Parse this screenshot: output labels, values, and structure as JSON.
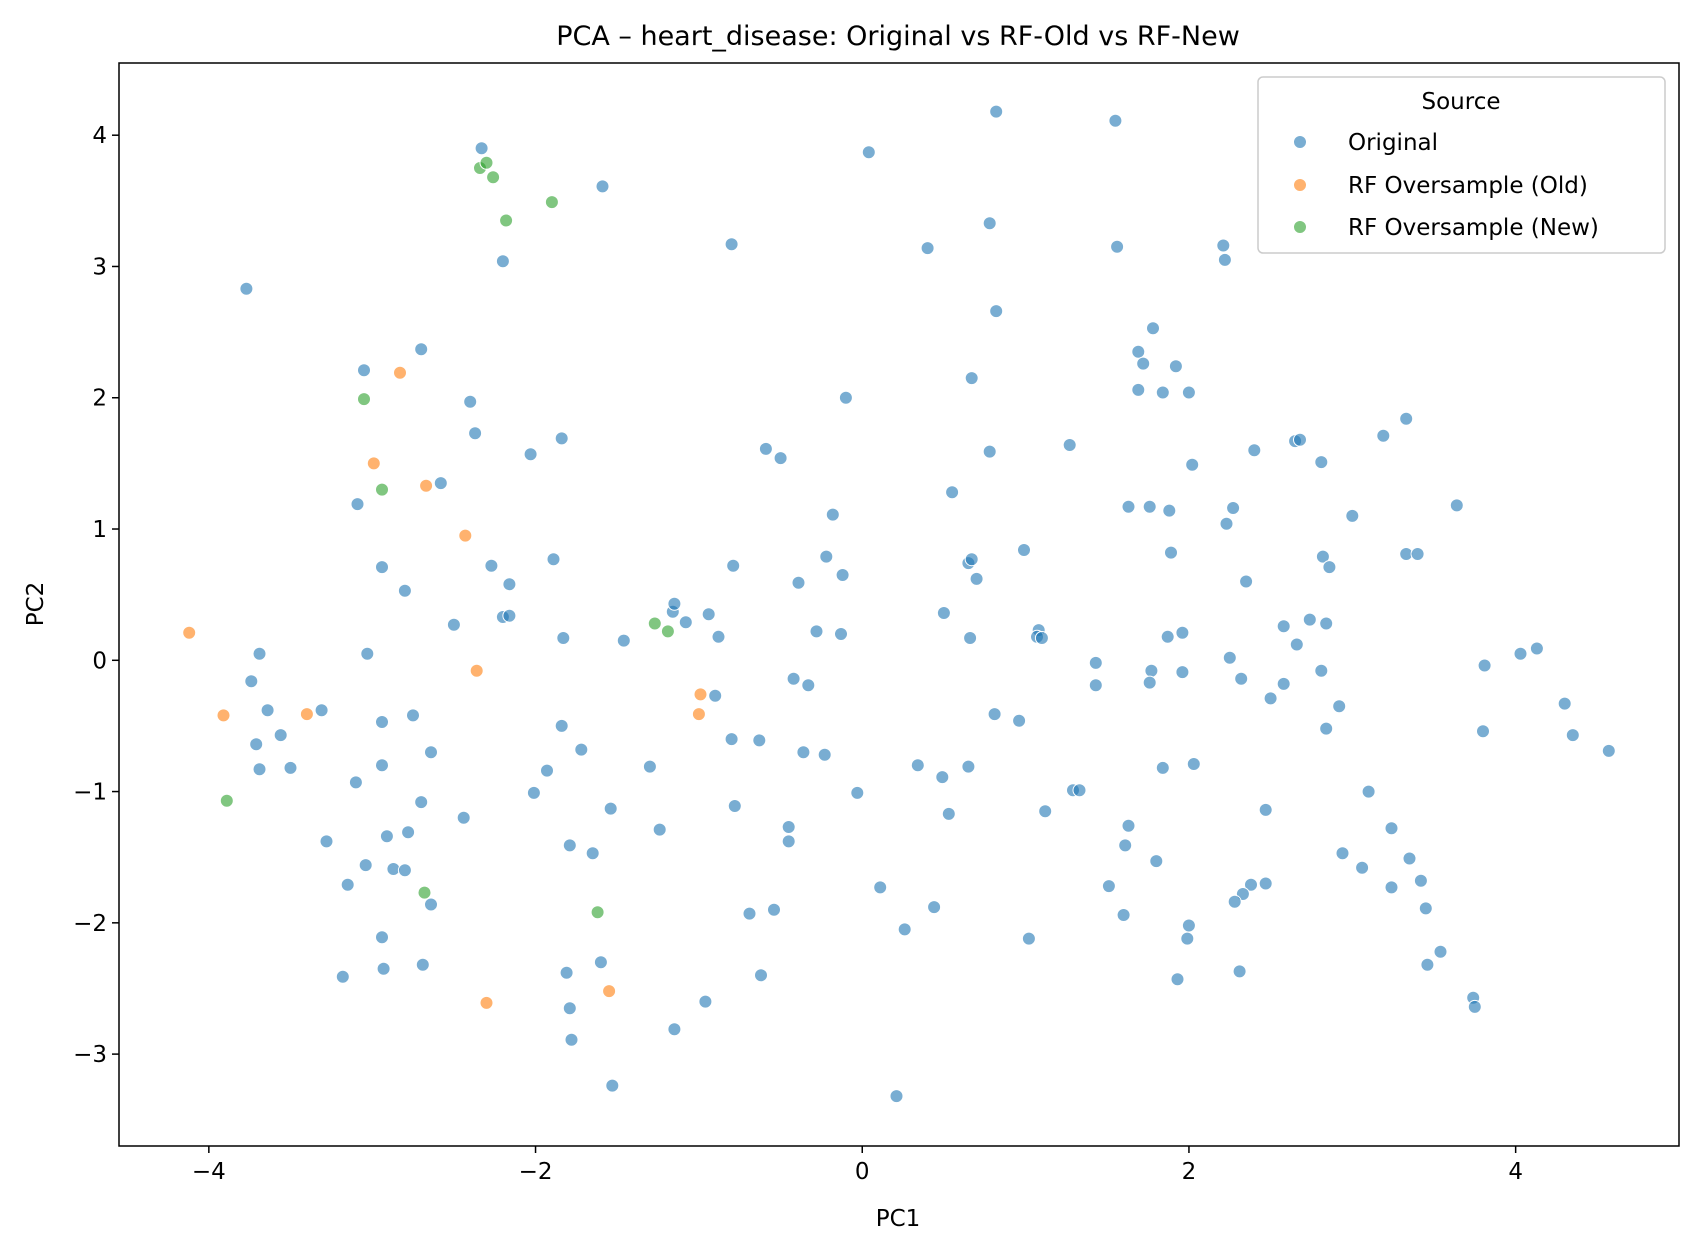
{
  "chart_data": {
    "type": "scatter",
    "title": "PCA – heart_disease: Original vs RF-Old vs RF-New",
    "xlabel": "PC1",
    "ylabel": "PC2",
    "xlim": [
      -4.55,
      5.0
    ],
    "ylim": [
      -3.7,
      4.55
    ],
    "x_ticks": [
      -4,
      -2,
      0,
      2,
      4
    ],
    "y_ticks": [
      -3,
      -2,
      -1,
      0,
      1,
      2,
      3,
      4
    ],
    "grid": false,
    "legend": {
      "title": "Source",
      "placement": "top-right",
      "entries": [
        "Original",
        "RF Oversample (Old)",
        "RF Oversample (New)"
      ]
    },
    "series": [
      {
        "name": "Original",
        "color": "#1f77b4",
        "points": [
          [
            -3.77,
            2.83
          ],
          [
            -2.33,
            3.9
          ],
          [
            -1.59,
            3.61
          ],
          [
            -2.2,
            3.04
          ],
          [
            -0.8,
            3.17
          ],
          [
            0.04,
            3.87
          ],
          [
            0.82,
            4.18
          ],
          [
            1.55,
            4.11
          ],
          [
            0.4,
            3.14
          ],
          [
            0.78,
            3.33
          ],
          [
            1.56,
            3.15
          ],
          [
            2.21,
            3.16
          ],
          [
            2.22,
            3.05
          ],
          [
            0.82,
            2.66
          ],
          [
            1.78,
            2.53
          ],
          [
            1.69,
            2.35
          ],
          [
            1.72,
            2.26
          ],
          [
            1.92,
            2.24
          ],
          [
            0.67,
            2.15
          ],
          [
            1.69,
            2.06
          ],
          [
            1.84,
            2.04
          ],
          [
            2.0,
            2.04
          ],
          [
            -0.1,
            2.0
          ],
          [
            -3.05,
            2.21
          ],
          [
            -2.7,
            2.37
          ],
          [
            -2.4,
            1.97
          ],
          [
            -2.37,
            1.73
          ],
          [
            -2.03,
            1.57
          ],
          [
            -1.84,
            1.69
          ],
          [
            -0.59,
            1.61
          ],
          [
            -0.5,
            1.54
          ],
          [
            0.78,
            1.59
          ],
          [
            1.27,
            1.64
          ],
          [
            2.02,
            1.49
          ],
          [
            2.4,
            1.6
          ],
          [
            2.65,
            1.67
          ],
          [
            2.68,
            1.68
          ],
          [
            2.81,
            1.51
          ],
          [
            3.19,
            1.71
          ],
          [
            3.33,
            1.84
          ],
          [
            -2.58,
            1.35
          ],
          [
            -3.09,
            1.19
          ],
          [
            -0.18,
            1.11
          ],
          [
            0.55,
            1.28
          ],
          [
            1.63,
            1.17
          ],
          [
            1.76,
            1.17
          ],
          [
            1.88,
            1.14
          ],
          [
            2.27,
            1.16
          ],
          [
            2.23,
            1.04
          ],
          [
            3.0,
            1.1
          ],
          [
            3.64,
            1.18
          ],
          [
            -2.94,
            0.71
          ],
          [
            -2.27,
            0.72
          ],
          [
            -1.89,
            0.77
          ],
          [
            -0.79,
            0.72
          ],
          [
            -0.22,
            0.79
          ],
          [
            -0.12,
            0.65
          ],
          [
            0.65,
            0.74
          ],
          [
            0.67,
            0.77
          ],
          [
            0.7,
            0.62
          ],
          [
            0.99,
            0.84
          ],
          [
            1.89,
            0.82
          ],
          [
            2.82,
            0.79
          ],
          [
            2.86,
            0.71
          ],
          [
            3.33,
            0.81
          ],
          [
            3.4,
            0.81
          ],
          [
            2.35,
            0.6
          ],
          [
            -2.16,
            0.58
          ],
          [
            -2.8,
            0.53
          ],
          [
            -0.39,
            0.59
          ],
          [
            -2.5,
            0.27
          ],
          [
            -2.2,
            0.33
          ],
          [
            -2.16,
            0.34
          ],
          [
            -1.16,
            0.37
          ],
          [
            -1.15,
            0.43
          ],
          [
            -1.08,
            0.29
          ],
          [
            -0.94,
            0.35
          ],
          [
            -0.88,
            0.18
          ],
          [
            -0.28,
            0.22
          ],
          [
            -0.13,
            0.2
          ],
          [
            0.5,
            0.36
          ],
          [
            0.66,
            0.17
          ],
          [
            1.08,
            0.23
          ],
          [
            1.07,
            0.18
          ],
          [
            1.1,
            0.17
          ],
          [
            1.87,
            0.18
          ],
          [
            1.96,
            0.21
          ],
          [
            2.58,
            0.26
          ],
          [
            2.66,
            0.12
          ],
          [
            2.74,
            0.31
          ],
          [
            2.84,
            0.28
          ],
          [
            -3.69,
            0.05
          ],
          [
            -3.03,
            0.05
          ],
          [
            -1.83,
            0.17
          ],
          [
            -1.46,
            0.15
          ],
          [
            1.43,
            -0.02
          ],
          [
            2.25,
            0.02
          ],
          [
            3.81,
            -0.04
          ],
          [
            4.03,
            0.05
          ],
          [
            4.13,
            0.09
          ],
          [
            -3.74,
            -0.16
          ],
          [
            -3.64,
            -0.38
          ],
          [
            -3.31,
            -0.38
          ],
          [
            -2.94,
            -0.47
          ],
          [
            -2.75,
            -0.42
          ],
          [
            -0.9,
            -0.27
          ],
          [
            -0.42,
            -0.14
          ],
          [
            -0.33,
            -0.19
          ],
          [
            0.81,
            -0.41
          ],
          [
            0.96,
            -0.46
          ],
          [
            1.43,
            -0.19
          ],
          [
            1.77,
            -0.08
          ],
          [
            1.76,
            -0.17
          ],
          [
            1.96,
            -0.09
          ],
          [
            2.32,
            -0.14
          ],
          [
            2.58,
            -0.18
          ],
          [
            2.5,
            -0.29
          ],
          [
            2.81,
            -0.08
          ],
          [
            2.92,
            -0.35
          ],
          [
            2.84,
            -0.52
          ],
          [
            3.8,
            -0.54
          ],
          [
            4.3,
            -0.33
          ],
          [
            4.35,
            -0.57
          ],
          [
            4.57,
            -0.69
          ],
          [
            -3.71,
            -0.64
          ],
          [
            -3.69,
            -0.83
          ],
          [
            -3.56,
            -0.57
          ],
          [
            -3.5,
            -0.82
          ],
          [
            -2.94,
            -0.8
          ],
          [
            -2.64,
            -0.7
          ],
          [
            -1.84,
            -0.5
          ],
          [
            -1.72,
            -0.68
          ],
          [
            -1.93,
            -0.84
          ],
          [
            -1.3,
            -0.81
          ],
          [
            -0.8,
            -0.6
          ],
          [
            -0.63,
            -0.61
          ],
          [
            -0.36,
            -0.7
          ],
          [
            -0.23,
            -0.72
          ],
          [
            0.34,
            -0.8
          ],
          [
            0.49,
            -0.89
          ],
          [
            0.65,
            -0.81
          ],
          [
            1.84,
            -0.82
          ],
          [
            2.03,
            -0.79
          ],
          [
            -3.1,
            -0.93
          ],
          [
            -2.7,
            -1.08
          ],
          [
            -2.44,
            -1.2
          ],
          [
            -2.01,
            -1.01
          ],
          [
            -1.54,
            -1.13
          ],
          [
            -0.78,
            -1.11
          ],
          [
            -0.03,
            -1.01
          ],
          [
            0.53,
            -1.17
          ],
          [
            1.12,
            -1.15
          ],
          [
            1.29,
            -0.99
          ],
          [
            1.33,
            -0.99
          ],
          [
            2.47,
            -1.14
          ],
          [
            3.1,
            -1.0
          ],
          [
            -3.28,
            -1.38
          ],
          [
            -2.91,
            -1.34
          ],
          [
            -2.78,
            -1.31
          ],
          [
            -3.04,
            -1.56
          ],
          [
            -2.87,
            -1.59
          ],
          [
            -2.8,
            -1.6
          ],
          [
            -1.79,
            -1.41
          ],
          [
            -1.65,
            -1.47
          ],
          [
            -1.24,
            -1.29
          ],
          [
            -0.45,
            -1.27
          ],
          [
            -0.45,
            -1.38
          ],
          [
            1.63,
            -1.26
          ],
          [
            1.61,
            -1.41
          ],
          [
            1.8,
            -1.53
          ],
          [
            2.94,
            -1.47
          ],
          [
            3.06,
            -1.58
          ],
          [
            3.24,
            -1.28
          ],
          [
            3.35,
            -1.51
          ],
          [
            -3.15,
            -1.71
          ],
          [
            -2.64,
            -1.86
          ],
          [
            0.11,
            -1.73
          ],
          [
            1.51,
            -1.72
          ],
          [
            2.38,
            -1.71
          ],
          [
            2.47,
            -1.7
          ],
          [
            2.33,
            -1.78
          ],
          [
            2.28,
            -1.84
          ],
          [
            3.24,
            -1.73
          ],
          [
            3.42,
            -1.68
          ],
          [
            -2.94,
            -2.11
          ],
          [
            -0.69,
            -1.93
          ],
          [
            -0.54,
            -1.9
          ],
          [
            0.26,
            -2.05
          ],
          [
            0.44,
            -1.88
          ],
          [
            1.02,
            -2.12
          ],
          [
            1.6,
            -1.94
          ],
          [
            1.99,
            -2.12
          ],
          [
            2.0,
            -2.02
          ],
          [
            3.45,
            -1.89
          ],
          [
            3.54,
            -2.22
          ],
          [
            -3.18,
            -2.41
          ],
          [
            -2.93,
            -2.35
          ],
          [
            -2.69,
            -2.32
          ],
          [
            -1.81,
            -2.38
          ],
          [
            -1.6,
            -2.3
          ],
          [
            -0.62,
            -2.4
          ],
          [
            1.93,
            -2.43
          ],
          [
            2.31,
            -2.37
          ],
          [
            3.46,
            -2.32
          ],
          [
            -1.79,
            -2.65
          ],
          [
            -1.78,
            -2.89
          ],
          [
            -0.96,
            -2.6
          ],
          [
            -1.15,
            -2.81
          ],
          [
            3.74,
            -2.57
          ],
          [
            3.75,
            -2.64
          ],
          [
            -1.53,
            -3.24
          ],
          [
            0.21,
            -3.32
          ]
        ]
      },
      {
        "name": "RF Oversample (Old)",
        "color": "#ff7f0e",
        "points": [
          [
            -4.12,
            0.21
          ],
          [
            -3.91,
            -0.42
          ],
          [
            -3.4,
            -0.41
          ],
          [
            -2.83,
            2.19
          ],
          [
            -2.99,
            1.5
          ],
          [
            -2.67,
            1.33
          ],
          [
            -2.43,
            0.95
          ],
          [
            -2.36,
            -0.08
          ],
          [
            -0.99,
            -0.26
          ],
          [
            -1.0,
            -0.41
          ],
          [
            -2.3,
            -2.61
          ],
          [
            -1.55,
            -2.52
          ]
        ]
      },
      {
        "name": "RF Oversample (New)",
        "color": "#2ca02c",
        "points": [
          [
            -2.34,
            3.75
          ],
          [
            -2.3,
            3.79
          ],
          [
            -2.26,
            3.68
          ],
          [
            -1.9,
            3.49
          ],
          [
            -2.18,
            3.35
          ],
          [
            -3.05,
            1.99
          ],
          [
            -2.94,
            1.3
          ],
          [
            -1.27,
            0.28
          ],
          [
            -1.19,
            0.22
          ],
          [
            -3.89,
            -1.07
          ],
          [
            -2.68,
            -1.77
          ],
          [
            -1.62,
            -1.92
          ]
        ]
      }
    ]
  }
}
